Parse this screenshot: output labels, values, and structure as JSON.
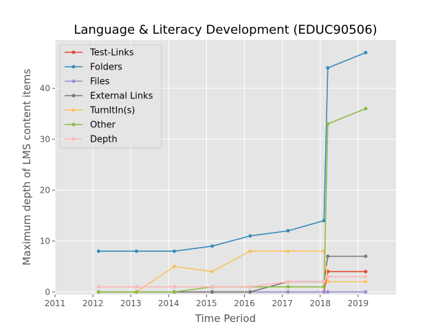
{
  "chart_data": {
    "type": "line",
    "title": "Language & Literacy Development (EDUC90506)",
    "xlabel": "Time Period",
    "ylabel": "Maximum depth of LMS content items",
    "xlim": [
      2011,
      2020
    ],
    "ylim": [
      -0.5,
      49.5
    ],
    "xticks": [
      2011,
      2012,
      2013,
      2014,
      2015,
      2016,
      2017,
      2018,
      2019
    ],
    "yticks": [
      0,
      10,
      20,
      30,
      40
    ],
    "grid": true,
    "legend_position": "top-left",
    "x": [
      2012.15,
      2013.15,
      2014.15,
      2015.15,
      2016.15,
      2017.15,
      2018.1,
      2018.2,
      2019.2
    ],
    "series": [
      {
        "name": "Test-Links",
        "color": "#E24A33",
        "values": [
          0,
          0,
          0,
          0,
          0,
          0,
          0,
          4,
          4
        ]
      },
      {
        "name": "Folders",
        "color": "#348ABD",
        "values": [
          8,
          8,
          8,
          9,
          11,
          12,
          14,
          44,
          47
        ]
      },
      {
        "name": "Files",
        "color": "#988ED5",
        "values": [
          0,
          0,
          0,
          0,
          0,
          0,
          0,
          0,
          0
        ]
      },
      {
        "name": "External Links",
        "color": "#777777",
        "values": [
          0,
          0,
          0,
          0,
          0,
          2,
          2,
          7,
          7
        ]
      },
      {
        "name": "TurnItIn(s)",
        "color": "#FBC15E",
        "values": [
          0,
          0,
          5,
          4,
          8,
          8,
          8,
          2,
          2
        ]
      },
      {
        "name": "Other",
        "color": "#8EBA42",
        "values": [
          0,
          0,
          0,
          1,
          1,
          1,
          1,
          33,
          36
        ]
      },
      {
        "name": "Depth",
        "color": "#FFB5B8",
        "values": [
          1,
          1,
          1,
          1,
          1,
          2,
          2,
          3,
          3
        ]
      }
    ]
  }
}
